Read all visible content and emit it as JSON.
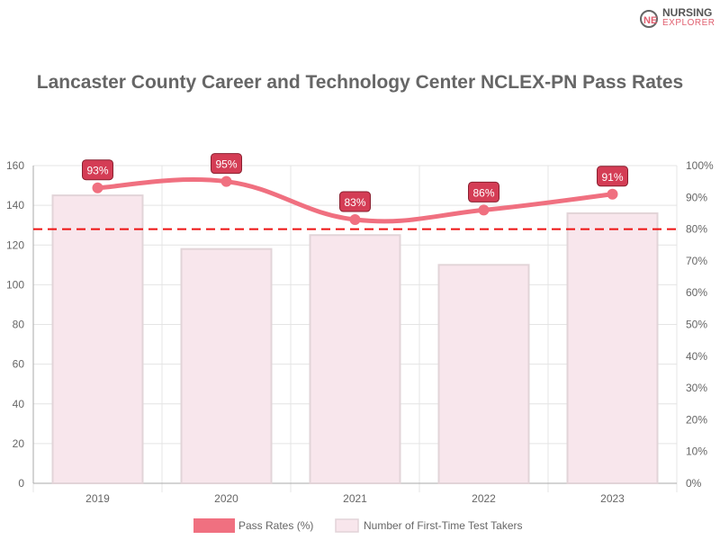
{
  "logo": {
    "line1": "NURSING",
    "line2": "EXPLORER"
  },
  "chart_data": {
    "type": "bar+line",
    "title": "Lancaster County Career and Technology Center NCLEX-PN Pass Rates",
    "categories": [
      "2019",
      "2020",
      "2021",
      "2022",
      "2023"
    ],
    "series": [
      {
        "name": "Pass Rates (%)",
        "type": "line",
        "axis": "right",
        "values": [
          93,
          95,
          83,
          86,
          91
        ],
        "labels": [
          "93%",
          "95%",
          "83%",
          "86%",
          "91%"
        ],
        "color": "#f07080"
      },
      {
        "name": "Number of First-Time Test Takers",
        "type": "bar",
        "axis": "left",
        "values": [
          145,
          118,
          125,
          110,
          136
        ],
        "color": "#f8e6ec"
      }
    ],
    "left_axis": {
      "range": [
        0,
        160
      ],
      "ticks": [
        "0",
        "20",
        "40",
        "60",
        "80",
        "100",
        "120",
        "140",
        "160"
      ]
    },
    "right_axis": {
      "range": [
        0,
        100
      ],
      "ticks": [
        "0%",
        "10%",
        "20%",
        "30%",
        "40%",
        "50%",
        "60%",
        "70%",
        "80%",
        "90%",
        "100%"
      ]
    },
    "reference_line": {
      "value": 80,
      "axis": "right",
      "color": "#ee1111",
      "style": "dashed"
    },
    "grid": true,
    "legend": "bottom"
  }
}
